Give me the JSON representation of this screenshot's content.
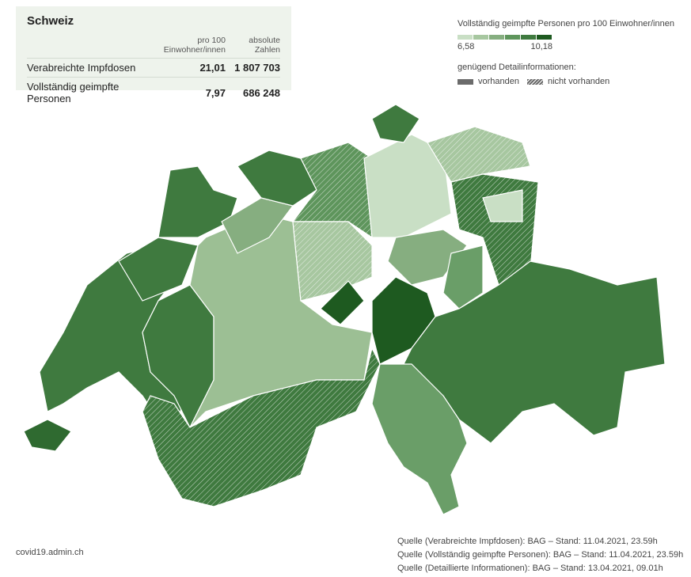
{
  "summary": {
    "title": "Schweiz",
    "columns": [
      "pro 100 Einwohner/innen",
      "absolute Zahlen"
    ],
    "rows": [
      {
        "label": "Verabreichte Impfdosen",
        "per100": "21,01",
        "absolute": "1 807 703"
      },
      {
        "label": "Vollständig geimpfte Personen",
        "per100": "7,97",
        "absolute": "686 248"
      }
    ]
  },
  "legend": {
    "title": "Vollständig geimpfte Personen pro 100 Einwohner/innen",
    "colors": [
      "#c9dfc5",
      "#a7c7a0",
      "#86ae80",
      "#5e955c",
      "#3f7a3f",
      "#1e5a20"
    ],
    "min_label": "6,58",
    "max_label": "10,18",
    "detail_title": "genügend Detailinformationen:",
    "detail_items": [
      "vorhanden",
      "nicht vorhanden"
    ]
  },
  "footer": {
    "site": "covid19.admin.ch",
    "sources": [
      "Quelle (Verabreichte Impfdosen): BAG – Stand: 11.04.2021, 23.59h",
      "Quelle (Vollständig geimpfte Personen): BAG – Stand: 11.04.2021, 23.59h",
      "Quelle (Detaillierte Informationen): BAG – Stand: 13.04.2021, 09.01h"
    ]
  }
}
